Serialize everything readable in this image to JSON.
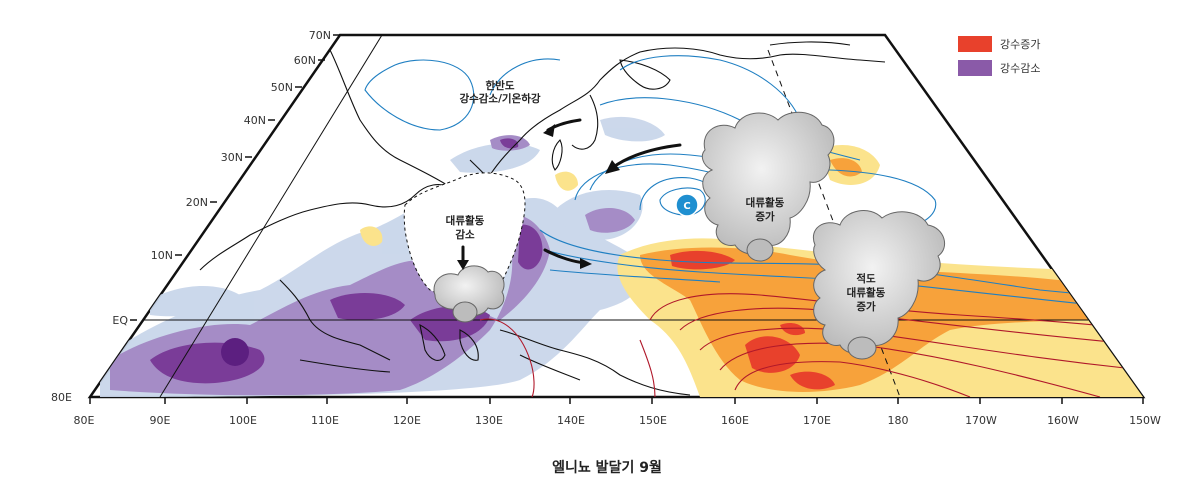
{
  "legend": {
    "items": [
      {
        "label": "강수증가",
        "color": "#e8412c"
      },
      {
        "label": "강수감소",
        "color": "#8a5aa8"
      }
    ]
  },
  "axes": {
    "lat_labels": [
      "70N",
      "60N",
      "50N",
      "40N",
      "30N",
      "20N",
      "10N",
      "EQ",
      "80E"
    ],
    "lon_labels": [
      "80E",
      "90E",
      "100E",
      "110E",
      "120E",
      "130E",
      "140E",
      "150E",
      "160E",
      "170E",
      "180",
      "170W",
      "160W",
      "150W"
    ]
  },
  "annotations": {
    "korea_1": "한반도",
    "korea_2": "강수감소/기온하강",
    "conv_dec_1": "대류활동",
    "conv_dec_2": "감소",
    "conv_inc_1": "대류활동",
    "conv_inc_2": "증가",
    "eq_conv_1": "적도",
    "eq_conv_2": "대류활동",
    "eq_conv_3": "증가",
    "cyclone": "C"
  },
  "caption": "엘니뇨 발달기 9월",
  "colors": {
    "increase_strong": "#e8412c",
    "increase_mid": "#f7a23b",
    "increase_weak": "#fbe38c",
    "decrease_strong": "#7a3c98",
    "decrease_mid": "#a58cc6",
    "decrease_weak": "#c9d6ea",
    "isobar_blue": "#1f7fc2",
    "isobar_red": "#b0182a"
  }
}
